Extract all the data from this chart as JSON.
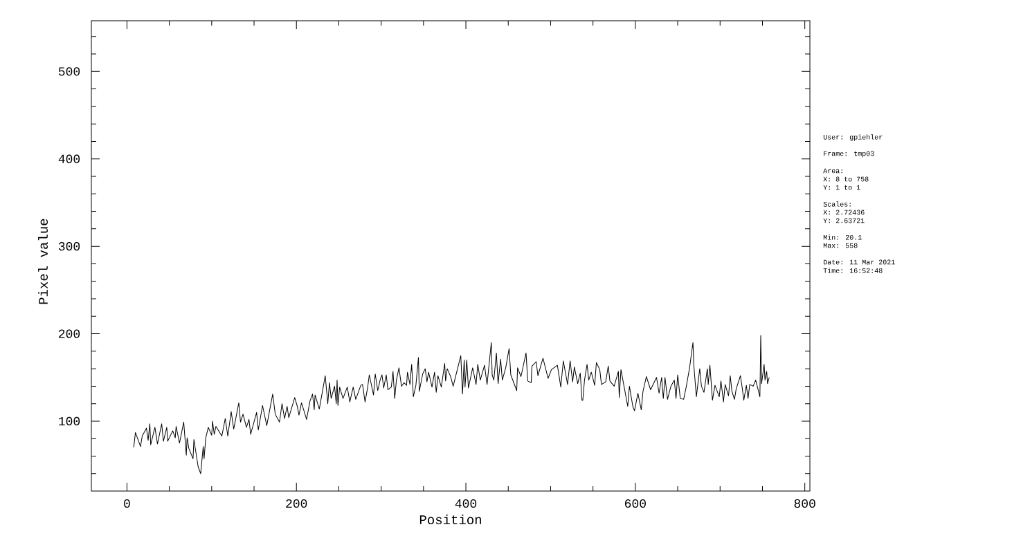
{
  "chart_data": {
    "type": "line",
    "xlabel": "Position",
    "ylabel": "Pixel value",
    "x": [
      8,
      10,
      16,
      18,
      23,
      25,
      27,
      28,
      33,
      36,
      41,
      43,
      47,
      48,
      54,
      57,
      58,
      62,
      67,
      70,
      71,
      73,
      78,
      79,
      84,
      87,
      90,
      91,
      93,
      96,
      100,
      101,
      103,
      105,
      112,
      116,
      119,
      123,
      126,
      132,
      134,
      137,
      141,
      144,
      146,
      153,
      155,
      160,
      165,
      172,
      175,
      180,
      183,
      186,
      189,
      191,
      198,
      201,
      203,
      206,
      212,
      216,
      219,
      221,
      222,
      227,
      232,
      234,
      237,
      239,
      241,
      245,
      247,
      248,
      249,
      251,
      255,
      260,
      263,
      267,
      270,
      276,
      278,
      281,
      284,
      286,
      291,
      293,
      296,
      299,
      301,
      303,
      306,
      308,
      312,
      314,
      316,
      318,
      321,
      324,
      327,
      330,
      331,
      334,
      336,
      338,
      341,
      344,
      345,
      349,
      352,
      354,
      356,
      360,
      363,
      365,
      367,
      371,
      375,
      376,
      378,
      382,
      385,
      394,
      396,
      398,
      399,
      401,
      403,
      408,
      412,
      414,
      417,
      422,
      425,
      430,
      431,
      433,
      436,
      438,
      441,
      443,
      447,
      451,
      453,
      460,
      461,
      465,
      471,
      473,
      477,
      478,
      483,
      485,
      491,
      497,
      501,
      508,
      512,
      515,
      520,
      523,
      526,
      528,
      532,
      535,
      537,
      538,
      540,
      543,
      545,
      548,
      552,
      554,
      558,
      560,
      565,
      568,
      570,
      575,
      580,
      581,
      583,
      587,
      591,
      593,
      597,
      599,
      603,
      607,
      609,
      613,
      618,
      625,
      628,
      631,
      633,
      635,
      638,
      642,
      646,
      648,
      650,
      653,
      657,
      660,
      664,
      668,
      669,
      672,
      676,
      678,
      681,
      685,
      686,
      688,
      691,
      694,
      699,
      701,
      704,
      706,
      710,
      712,
      714,
      717,
      719,
      724,
      726,
      728,
      731,
      733,
      735,
      739,
      742,
      747,
      748,
      749,
      752,
      753,
      755,
      756,
      758
    ],
    "series": [
      {
        "color": "#000000",
        "values": [
          70,
          87,
          71,
          83,
          92,
          78,
          97,
          73,
          93,
          74,
          97,
          77,
          93,
          77,
          89,
          81,
          94,
          75,
          99,
          61,
          81,
          69,
          57,
          79,
          48,
          40,
          71,
          57,
          81,
          93,
          84,
          100,
          85,
          94,
          83,
          103,
          83,
          111,
          91,
          121,
          99,
          108,
          93,
          102,
          85,
          110,
          90,
          118,
          95,
          131,
          108,
          99,
          120,
          103,
          117,
          104,
          127,
          117,
          107,
          121,
          102,
          123,
          131,
          113,
          130,
          114,
          141,
          152,
          120,
          144,
          126,
          140,
          120,
          147,
          118,
          139,
          126,
          139,
          122,
          139,
          125,
          141,
          142,
          122,
          138,
          153,
          130,
          154,
          135,
          148,
          153,
          138,
          153,
          136,
          139,
          157,
          126,
          147,
          161,
          140,
          144,
          141,
          156,
          142,
          165,
          128,
          141,
          173,
          134,
          154,
          160,
          145,
          156,
          139,
          156,
          133,
          152,
          139,
          166,
          146,
          160,
          151,
          140,
          175,
          131,
          170,
          139,
          170,
          138,
          161,
          142,
          165,
          147,
          164,
          142,
          190,
          153,
          147,
          178,
          143,
          171,
          147,
          161,
          183,
          153,
          135,
          161,
          151,
          178,
          146,
          144,
          163,
          168,
          152,
          172,
          149,
          159,
          164,
          139,
          169,
          142,
          169,
          145,
          162,
          143,
          155,
          124,
          124,
          147,
          165,
          147,
          156,
          141,
          167,
          159,
          142,
          145,
          163,
          146,
          140,
          157,
          127,
          159,
          138,
          117,
          140,
          117,
          112,
          132,
          113,
          134,
          151,
          136,
          150,
          132,
          150,
          126,
          150,
          125,
          140,
          147,
          126,
          153,
          126,
          125,
          139,
          161,
          190,
          164,
          128,
          160,
          140,
          133,
          160,
          142,
          164,
          124,
          141,
          128,
          146,
          122,
          142,
          129,
          152,
          134,
          125,
          137,
          152,
          139,
          124,
          141,
          126,
          142,
          140,
          147,
          128,
          198,
          143,
          165,
          147,
          157,
          143,
          150
        ]
      }
    ],
    "xlim": [
      -42,
      806
    ],
    "ylim": [
      20.1,
      558
    ],
    "xticks": [
      0,
      {
        "value": 50,
        "label": null
      },
      {
        "value": 100,
        "label": null
      },
      {
        "value": 150,
        "label": null
      },
      200,
      {
        "value": 250,
        "label": null
      },
      {
        "value": 300,
        "label": null
      },
      {
        "value": 350,
        "label": null
      },
      400,
      {
        "value": 450,
        "label": null
      },
      {
        "value": 500,
        "label": null
      },
      {
        "value": 550,
        "label": null
      },
      600,
      {
        "value": 650,
        "label": null
      },
      {
        "value": 700,
        "label": null
      },
      {
        "value": 750,
        "label": null
      },
      800
    ],
    "yticks": [
      {
        "value": 40,
        "label": null
      },
      {
        "value": 60,
        "label": null
      },
      {
        "value": 80,
        "label": null
      },
      100,
      {
        "value": 120,
        "label": null
      },
      {
        "value": 140,
        "label": null
      },
      {
        "value": 160,
        "label": null
      },
      {
        "value": 180,
        "label": null
      },
      200,
      {
        "value": 220,
        "label": null
      },
      {
        "value": 240,
        "label": null
      },
      {
        "value": 260,
        "label": null
      },
      {
        "value": 280,
        "label": null
      },
      300,
      {
        "value": 320,
        "label": null
      },
      {
        "value": 340,
        "label": null
      },
      {
        "value": 360,
        "label": null
      },
      {
        "value": 380,
        "label": null
      },
      400,
      {
        "value": 420,
        "label": null
      },
      {
        "value": 440,
        "label": null
      },
      {
        "value": 460,
        "label": null
      },
      {
        "value": 480,
        "label": null
      },
      500,
      {
        "value": 520,
        "label": null
      },
      {
        "value": 540,
        "label": null
      }
    ],
    "marker": "none",
    "line_style": "solid",
    "annotations": [
      "User: gpiehler",
      "Frame: tmp03",
      "Area:",
      "X: 8 to 758",
      "Y: 1 to 1",
      "Scales:",
      "X: 2.72436",
      "Y: 2.63721",
      "Min: 20.1",
      "Max: 558",
      "Date: 11 Mar 2021",
      "Time: 16:52:48"
    ]
  }
}
